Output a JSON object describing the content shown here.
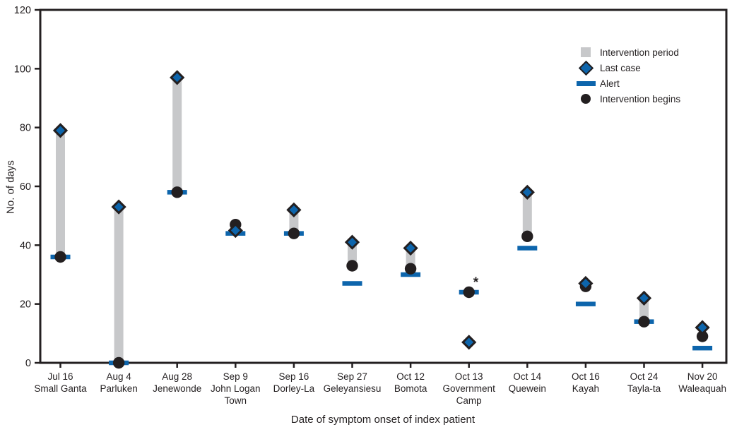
{
  "colors": {
    "blue": "#0d65ac",
    "gray": "#c7c8ca",
    "ink": "#231f20",
    "background": "#ffffff"
  },
  "legend": {
    "items": [
      {
        "key": "intervention-period",
        "label": "Intervention period",
        "swatch": "gray-square"
      },
      {
        "key": "last-case",
        "label": "Last case",
        "swatch": "blue-diamond"
      },
      {
        "key": "alert",
        "label": "Alert",
        "swatch": "blue-bar"
      },
      {
        "key": "intervention-begins",
        "label": "Intervention begins",
        "swatch": "black-circle"
      }
    ]
  },
  "chart_data": {
    "type": "scatter",
    "title": "",
    "xlabel": "Date of symptom onset of index patient",
    "ylabel": "No. of days",
    "ylim": [
      0,
      120
    ],
    "y_ticks": [
      0,
      20,
      40,
      60,
      80,
      100,
      120
    ],
    "grid": false,
    "legend_position": "top-right",
    "points": [
      {
        "date": "Jul 16",
        "place": "Small Ganta",
        "alert": 36,
        "intervention_begins": 36,
        "last_case": 79,
        "intervention_period": [
          36,
          79
        ],
        "annotation": null
      },
      {
        "date": "Aug 4",
        "place": "Parluken",
        "alert": 0,
        "intervention_begins": 0,
        "last_case": 53,
        "intervention_period": [
          0,
          53
        ],
        "annotation": null
      },
      {
        "date": "Aug 28",
        "place": "Jenewonde",
        "alert": 58,
        "intervention_begins": 58,
        "last_case": 97,
        "intervention_period": [
          58,
          97
        ],
        "annotation": null
      },
      {
        "date": "Sep 9",
        "place": "John Logan Town",
        "alert": 44,
        "intervention_begins": 47,
        "last_case": 45,
        "intervention_period": null,
        "annotation": null
      },
      {
        "date": "Sep 16",
        "place": "Dorley-La",
        "alert": 44,
        "intervention_begins": 44,
        "last_case": 52,
        "intervention_period": [
          44,
          52
        ],
        "annotation": null
      },
      {
        "date": "Sep 27",
        "place": "Geleyansiesu",
        "alert": 27,
        "intervention_begins": 33,
        "last_case": 41,
        "intervention_period": [
          33,
          41
        ],
        "annotation": null
      },
      {
        "date": "Oct 12",
        "place": "Bomota",
        "alert": 30,
        "intervention_begins": 32,
        "last_case": 39,
        "intervention_period": [
          32,
          39
        ],
        "annotation": null
      },
      {
        "date": "Oct 13",
        "place": "Government Camp",
        "alert": 24,
        "intervention_begins": 24,
        "last_case": 7,
        "intervention_period": null,
        "annotation": "*"
      },
      {
        "date": "Oct 14",
        "place": "Quewein",
        "alert": 39,
        "intervention_begins": 43,
        "last_case": 58,
        "intervention_period": [
          43,
          58
        ],
        "annotation": null
      },
      {
        "date": "Oct 16",
        "place": "Kayah",
        "alert": 20,
        "intervention_begins": 26,
        "last_case": 27,
        "intervention_period": null,
        "annotation": null
      },
      {
        "date": "Oct 24",
        "place": "Tayla-ta",
        "alert": 14,
        "intervention_begins": 14,
        "last_case": 22,
        "intervention_period": [
          14,
          22
        ],
        "annotation": null
      },
      {
        "date": "Nov 20",
        "place": "Waleaquah",
        "alert": 5,
        "intervention_begins": 9,
        "last_case": 12,
        "intervention_period": null,
        "annotation": null
      }
    ]
  }
}
